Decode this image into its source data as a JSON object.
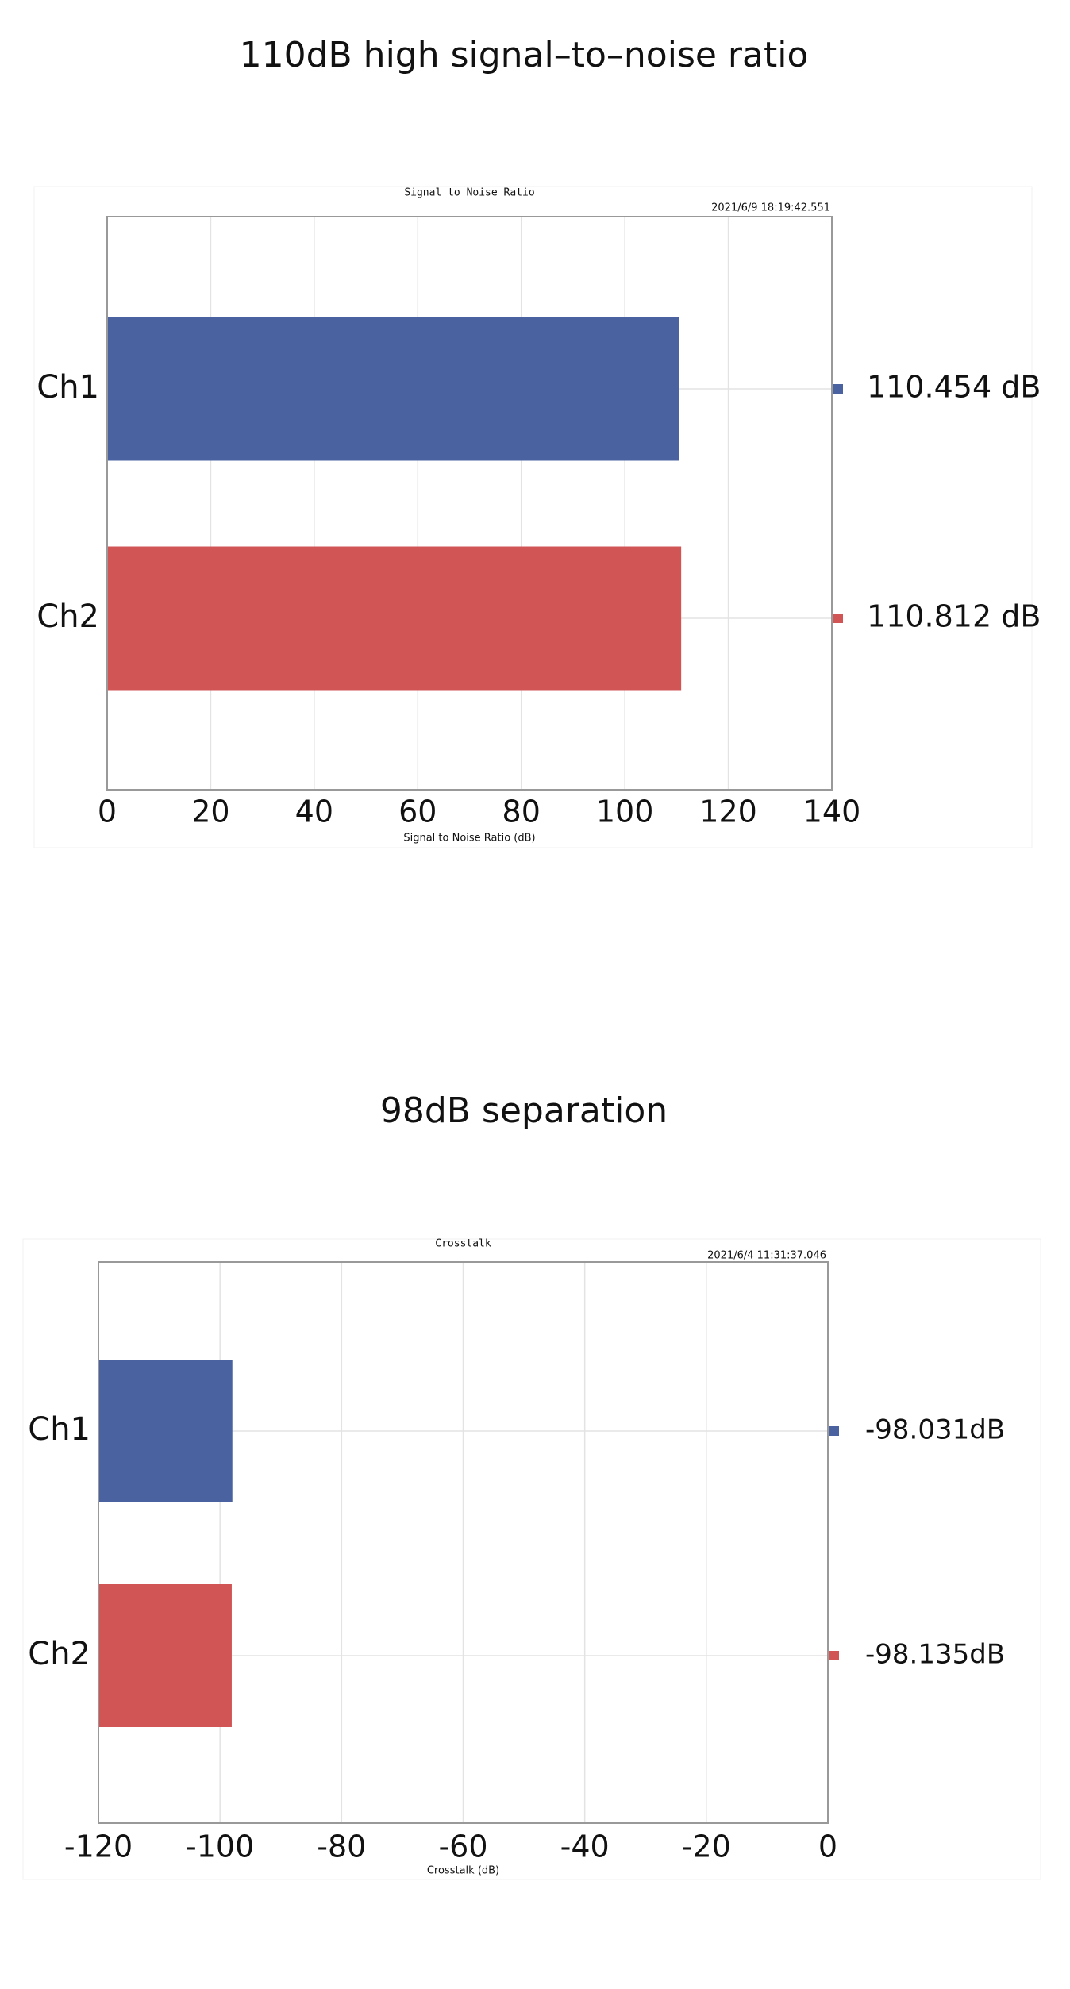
{
  "chart_data": [
    {
      "type": "bar",
      "heading": "110dB high signal–to–noise ratio",
      "title": "Signal to Noise Ratio",
      "timestamp": "2021/6/9 18:19:42.551",
      "xlabel": "Signal to Noise Ratio (dB)",
      "categories": [
        "Ch1",
        "Ch2"
      ],
      "values": [
        110.454,
        110.812
      ],
      "value_labels": [
        "110.454 dB",
        "110.812 dB"
      ],
      "colors": [
        "#4a63a0",
        "#d05554"
      ],
      "xlim": [
        0,
        140
      ],
      "xticks": [
        0,
        20,
        40,
        60,
        80,
        100,
        120,
        140
      ],
      "grid": true
    },
    {
      "type": "bar",
      "heading": "98dB separation",
      "title": "Crosstalk",
      "timestamp": "2021/6/4 11:31:37.046",
      "xlabel": "Crosstalk (dB)",
      "categories": [
        "Ch1",
        "Ch2"
      ],
      "values": [
        -98.031,
        -98.135
      ],
      "value_labels": [
        "-98.031dB",
        "-98.135dB"
      ],
      "colors": [
        "#4a63a0",
        "#d05554"
      ],
      "xlim": [
        -120,
        0
      ],
      "xticks": [
        -120,
        -100,
        -80,
        -60,
        -40,
        -20,
        0
      ],
      "grid": true
    }
  ]
}
